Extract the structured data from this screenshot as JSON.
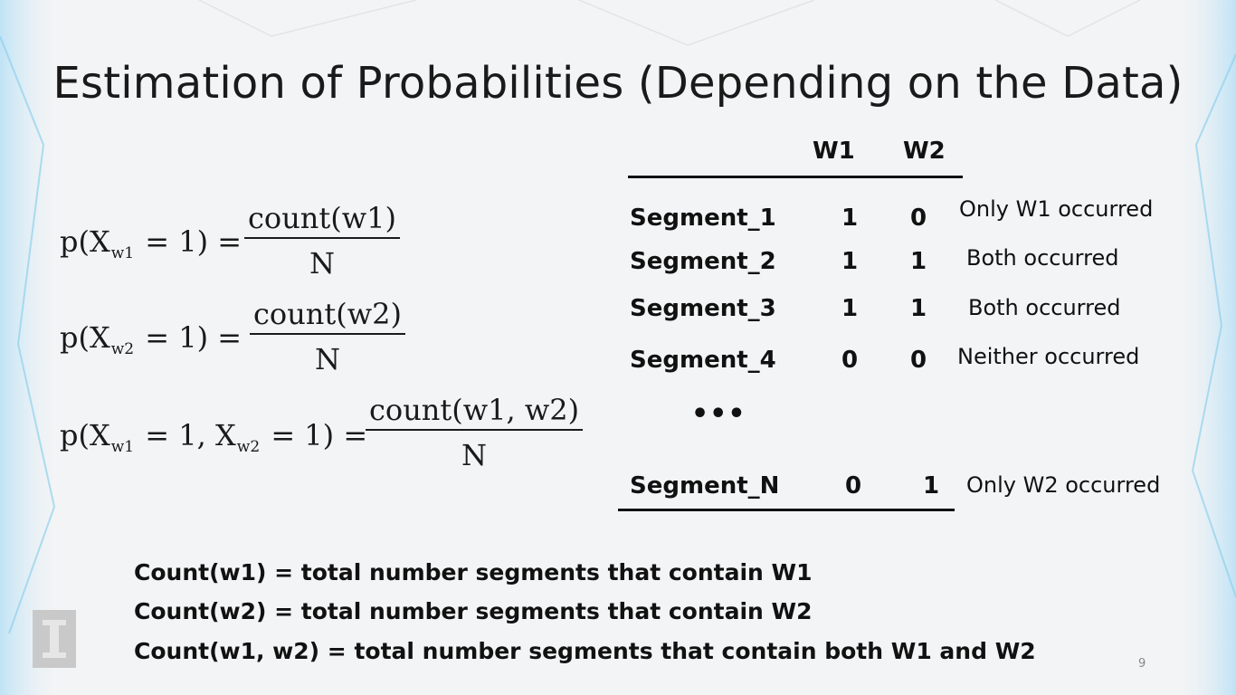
{
  "title": "Estimation of Probabilities (Depending on the Data)",
  "formulas": [
    {
      "lhs_prefix": "p(X",
      "lhs_sub": "w1",
      "lhs_suffix": " = 1) =",
      "numerator": "count(w1)",
      "denominator": "N"
    },
    {
      "lhs_prefix": "p(X",
      "lhs_sub": "w2",
      "lhs_suffix": " = 1) =",
      "numerator": "count(w2)",
      "denominator": "N"
    },
    {
      "lhs_prefix": "p(X",
      "lhs_sub": "w1",
      "lhs_mid": " = 1, X",
      "lhs_sub2": "w2",
      "lhs_suffix": " = 1) =",
      "numerator": "count(w1, w2)",
      "denominator": "N"
    }
  ],
  "table": {
    "headers": [
      "W1",
      "W2"
    ],
    "rows": [
      {
        "segment": "Segment_1",
        "w1": "1",
        "w2": "0",
        "note": "Only W1 occurred"
      },
      {
        "segment": "Segment_2",
        "w1": "1",
        "w2": "1",
        "note": "Both occurred"
      },
      {
        "segment": "Segment_3",
        "w1": "1",
        "w2": "1",
        "note": "Both occurred"
      },
      {
        "segment": "Segment_4",
        "w1": "0",
        "w2": "0",
        "note": "Neither occurred"
      }
    ],
    "ellipsis": "•••",
    "last_row": {
      "segment": "Segment_N",
      "w1": "0",
      "w2": "1",
      "note": "Only W2 occurred"
    }
  },
  "definitions": [
    "Count(w1) = total number segments that contain W1",
    "Count(w2) = total number segments that contain W2",
    "Count(w1, w2) = total number segments that contain both W1 and W2"
  ],
  "page_number": "9",
  "logo_icon": "university-logo-icon"
}
